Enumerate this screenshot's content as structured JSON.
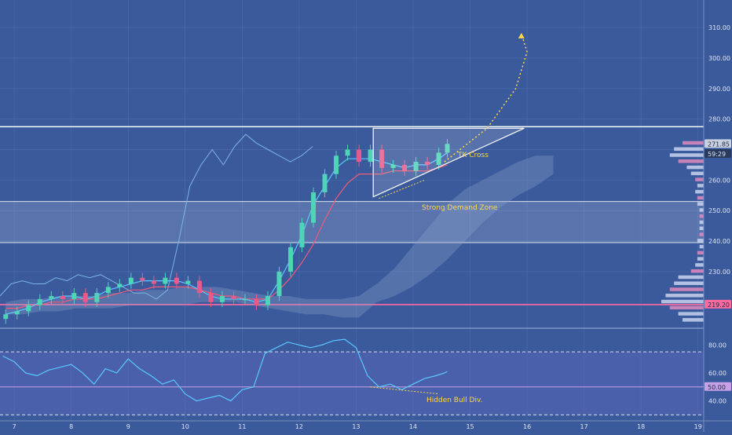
{
  "colors": {
    "background": "#3a5a9c",
    "grid": "#5a78b4",
    "text": "#dfe6f5",
    "candle_up": "#4fd4b8",
    "candle_down": "#e85a8c",
    "kijun": "#f05a78",
    "tenkan": "#5ac8ff",
    "chikou": "#7ab4e0",
    "cloud": "#8aa0c8",
    "support_line": "#ff6aa0",
    "annotation": "#ffd84a",
    "rsi_line": "#5ac8ff",
    "volume_profile": "#c8d4ee",
    "volume_profile_hot": "#e08ac0"
  },
  "price_axis": {
    "ticks": [
      "310.00",
      "300.00",
      "290.00",
      "280.00",
      "260.00",
      "250.00",
      "240.00",
      "230.00"
    ],
    "tick_values": [
      310,
      300,
      290,
      280,
      260,
      250,
      240,
      230
    ]
  },
  "price_badges": [
    {
      "label": "271.85",
      "value": 271.85,
      "color": "#c8d0e0",
      "text_color": "#1e2a44"
    },
    {
      "label": "59:29",
      "value": 268.6,
      "color": "#2a3a5c",
      "text_color": "#dfe6f5"
    },
    {
      "label": "219.20",
      "value": 219.2,
      "color": "#ff6aa0",
      "text_color": "#1e2a44"
    }
  ],
  "rsi_axis": {
    "ticks": [
      "80.00",
      "60.00",
      "40.00"
    ],
    "tick_values": [
      80,
      60,
      40
    ],
    "badge": {
      "label": "50.00",
      "value": 50
    }
  },
  "time_axis": {
    "ticks": [
      "7",
      "8",
      "9",
      "10",
      "11",
      "12",
      "13",
      "14",
      "15",
      "16",
      "17",
      "18",
      "19"
    ],
    "tick_values": [
      7,
      8,
      9,
      10,
      11,
      12,
      13,
      14,
      15,
      16,
      17,
      18,
      19
    ]
  },
  "annotations": {
    "tk_cross": "TK Cross",
    "demand_zone": "Strong Demand Zone",
    "hidden_bull_div": "Hidden Bull Div."
  },
  "chart_data": {
    "type": "candlestick",
    "x_range": [
      6.75,
      19.1
    ],
    "price_range": [
      213,
      318
    ],
    "rsi_range": [
      28,
      88
    ],
    "candles": {
      "x": [
        6.85,
        7.05,
        7.25,
        7.45,
        7.65,
        7.85,
        8.05,
        8.25,
        8.45,
        8.65,
        8.85,
        9.05,
        9.25,
        9.45,
        9.65,
        9.85,
        10.05,
        10.25,
        10.45,
        10.65,
        10.85,
        11.05,
        11.25,
        11.45,
        11.65,
        11.85,
        12.05,
        12.25,
        12.45,
        12.65,
        12.85,
        13.05,
        13.25,
        13.45,
        13.65,
        13.85,
        14.05,
        14.25,
        14.45,
        14.6
      ],
      "close": [
        216,
        217,
        219,
        221,
        222,
        221,
        223,
        220,
        223,
        225,
        226,
        228,
        227,
        226,
        228,
        226,
        227,
        223,
        220,
        222,
        221,
        221,
        219,
        222,
        230,
        238,
        246,
        256,
        262,
        268,
        270,
        266,
        270,
        264,
        265,
        263,
        266,
        265,
        269,
        271.85
      ]
    },
    "tenkan": [
      216,
      217,
      218,
      220,
      221,
      222,
      222,
      221,
      222,
      224,
      225,
      226,
      227,
      227,
      227,
      227,
      226,
      224,
      222,
      221,
      221,
      221,
      220,
      221,
      227,
      234,
      242,
      252,
      258,
      264,
      267,
      267,
      267,
      266,
      265,
      264,
      265,
      265,
      267,
      269
    ],
    "kijun": [
      218,
      218,
      219,
      219,
      220,
      220,
      221,
      221,
      221,
      222,
      223,
      224,
      224,
      225,
      225,
      225,
      225,
      224,
      223,
      222,
      222,
      221,
      221,
      221,
      224,
      228,
      233,
      239,
      247,
      254,
      259,
      262,
      262,
      262,
      263,
      263,
      263,
      263,
      264,
      265
    ],
    "chikou": [
      222,
      226,
      227,
      226,
      226,
      228,
      227,
      229,
      228,
      229,
      227,
      225,
      223,
      223,
      221,
      224,
      240,
      258,
      265,
      270,
      265,
      271,
      275,
      272,
      270,
      268,
      266,
      268,
      271
    ],
    "cloud_upper": [
      220,
      221,
      221,
      222,
      222,
      222,
      223,
      223,
      224,
      224,
      225,
      225,
      225,
      224,
      223,
      222,
      222,
      221,
      221,
      221,
      222,
      226,
      231,
      238,
      245,
      252,
      257,
      260,
      263,
      266,
      268,
      268
    ],
    "cloud_lower": [
      216,
      216,
      217,
      217,
      218,
      218,
      218,
      219,
      219,
      219,
      219,
      220,
      220,
      220,
      219,
      218,
      217,
      216,
      216,
      215,
      215,
      220,
      222,
      225,
      229,
      234,
      240,
      246,
      251,
      255,
      258,
      262
    ],
    "rsi": [
      72,
      68,
      60,
      58,
      62,
      64,
      66,
      60,
      52,
      63,
      60,
      70,
      63,
      58,
      52,
      55,
      45,
      40,
      42,
      44,
      40,
      48,
      50,
      74,
      78,
      82,
      80,
      78,
      80,
      83,
      84,
      78,
      58,
      50,
      52,
      48,
      52,
      56,
      58,
      60,
      61
    ],
    "rsi_x": [
      6.8,
      7.0,
      7.2,
      7.4,
      7.6,
      7.8,
      8.0,
      8.2,
      8.4,
      8.6,
      8.8,
      9.0,
      9.2,
      9.4,
      9.6,
      9.8,
      10.0,
      10.2,
      10.4,
      10.6,
      10.8,
      11.0,
      11.2,
      11.4,
      11.6,
      11.8,
      12.0,
      12.2,
      12.4,
      12.6,
      12.8,
      13.0,
      13.2,
      13.4,
      13.6,
      13.8,
      14.0,
      14.2,
      14.4,
      14.55,
      14.6
    ],
    "levels": {
      "resistance": 277.5,
      "demand_zone_top": 253,
      "demand_zone_bottom": 239.5,
      "support": 219.2,
      "rsi_upper": 75,
      "rsi_mid": 50,
      "rsi_lower": 30
    },
    "triangle": {
      "x": [
        13.3,
        15.95,
        13.3
      ],
      "y": [
        277.0,
        277.0,
        254.5
      ]
    },
    "projection": {
      "x": [
        14.55,
        15.3,
        15.8,
        16.0,
        15.9
      ],
      "y": [
        266,
        277,
        290,
        302,
        308
      ]
    },
    "volume_profile": {
      "prices": [
        272,
        270,
        268,
        266,
        264,
        262,
        260,
        258,
        256,
        254,
        252,
        250,
        248,
        246,
        244,
        242,
        240,
        238,
        236,
        234,
        232,
        230,
        228,
        226,
        224,
        222,
        220,
        218,
        216,
        214
      ],
      "volumes": [
        10,
        14,
        16,
        12,
        8,
        6,
        4,
        3,
        4,
        3,
        3,
        2,
        2,
        2,
        2,
        2,
        3,
        2,
        3,
        3,
        4,
        6,
        12,
        14,
        16,
        18,
        20,
        16,
        12,
        10
      ]
    }
  }
}
